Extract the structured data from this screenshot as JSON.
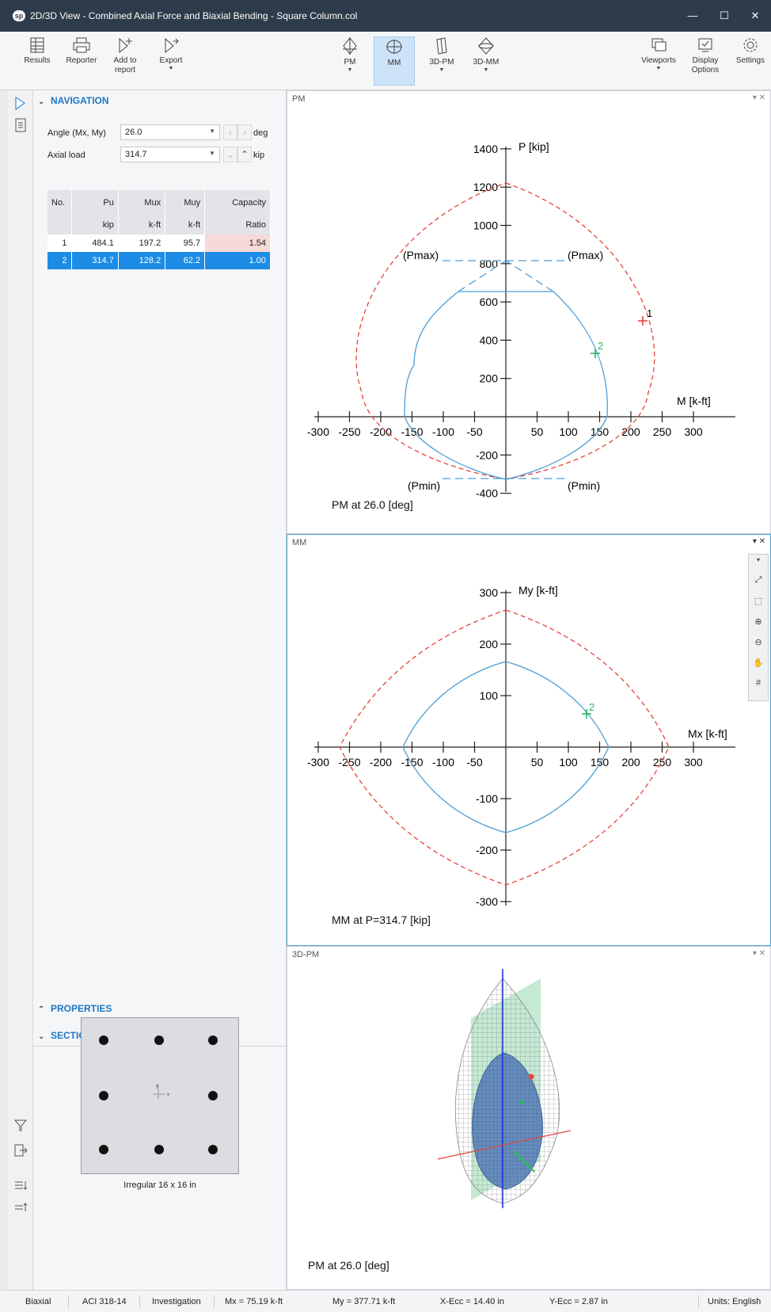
{
  "window": {
    "title": "2D/3D View - Combined Axial Force and Biaxial Bending - Square Column.col",
    "app_icon": "sp",
    "buttons": {
      "minimize": "—",
      "maximize": "☐",
      "close": "✕"
    }
  },
  "ribbon": {
    "results": "Results",
    "reporter": "Reporter",
    "add_to_report": "Add to report",
    "export": "Export",
    "pm": "PM",
    "mm": "MM",
    "pm3d": "3D-PM",
    "mm3d": "3D-MM",
    "viewports": "Viewports",
    "display_options": "Display Options",
    "settings": "Settings",
    "active_view": "MM"
  },
  "navigation": {
    "header": "NAVIGATION",
    "angle_label": "Angle (Mx, My)",
    "angle_value": "26.0",
    "angle_unit": "deg",
    "axial_label": "Axial load",
    "axial_value": "314.7",
    "axial_unit": "kip"
  },
  "load_table": {
    "headers": [
      "No.",
      "Pu",
      "Mux",
      "Muy",
      "Capacity"
    ],
    "units": [
      "",
      "kip",
      "k-ft",
      "k-ft",
      "Ratio"
    ],
    "rows": [
      [
        "1",
        "484.1",
        "197.2",
        "95.7",
        "1.54"
      ],
      [
        "2",
        "314.7",
        "128.2",
        "62.2",
        "1.00"
      ]
    ],
    "selected_row": 2
  },
  "properties": {
    "header": "PROPERTIES"
  },
  "section": {
    "header": "SECTION",
    "caption": "Irregular 16 x 16 in",
    "axis_y": "y",
    "axis_x": "x"
  },
  "views": {
    "pm": {
      "tab": "PM",
      "caption": "PM at 26.0 [deg]",
      "y_axis_label": "P [kip]",
      "x_axis_label": "M [k-ft]",
      "x_ticks": [
        "-300",
        "-250",
        "-200",
        "-150",
        "-100",
        "-50",
        "50",
        "100",
        "150",
        "200",
        "250",
        "300"
      ],
      "y_ticks": [
        "1400",
        "1200",
        "1000",
        "800",
        "600",
        "400",
        "200",
        "-200",
        "-400"
      ],
      "annotations": {
        "pmax_left": "(Pmax)",
        "pmax_right": "(Pmax)",
        "pmin_left": "(Pmin)",
        "pmin_right": "(Pmin)",
        "point1": "1",
        "point2": "2"
      }
    },
    "mm": {
      "tab": "MM",
      "caption": "MM at P=314.7 [kip]",
      "y_axis_label": "My [k-ft]",
      "x_axis_label": "Mx [k-ft]",
      "x_ticks": [
        "-300",
        "-250",
        "-200",
        "-150",
        "-100",
        "-50",
        "50",
        "100",
        "150",
        "200",
        "250",
        "300"
      ],
      "y_ticks": [
        "300",
        "200",
        "100",
        "-100",
        "-200",
        "-300"
      ],
      "annotations": {
        "point2": "2"
      }
    },
    "pm3d": {
      "tab": "3D-PM",
      "caption": "PM at 26.0 [deg]"
    }
  },
  "status": {
    "mode": "Biaxial",
    "code": "ACI 318-14",
    "run": "Investigation",
    "mx": "Mx  =  75.19  k-ft",
    "my": "My  =  377.71  k-ft",
    "xecc": "X-Ecc  =  14.40   in",
    "yecc": "Y-Ecc  =  2.87   in",
    "units": "Units:  English"
  },
  "colors": {
    "accent": "#1c77c3",
    "selection": "#1c8ce6",
    "titlebar": "#2e3b4a",
    "capacity_curve": "#4a9ed8",
    "factored_curve": "#e8433b",
    "point_ok": "#2fb366",
    "point_fail": "#e8433b"
  }
}
